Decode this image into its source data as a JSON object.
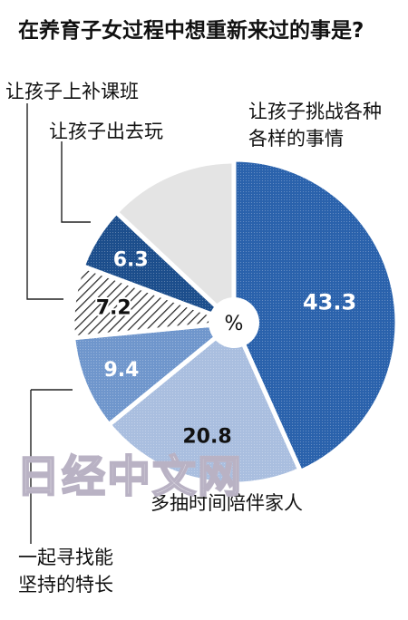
{
  "title": "在养育子女过程中想重新来过的事是?",
  "chart_data": {
    "type": "pie",
    "unit": "%",
    "slices": [
      {
        "label_lines": [
          "让孩子挑战各种",
          "各样的事情"
        ],
        "value": 43.3,
        "value_label": "43.3",
        "color": "#2a62ac"
      },
      {
        "label_lines": [
          "多抽时间陪伴家人"
        ],
        "value": 20.8,
        "value_label": "20.8",
        "color": "#a9bedf"
      },
      {
        "label_lines": [
          "一起寻找能",
          "坚持的特长"
        ],
        "value": 9.4,
        "value_label": "9.4",
        "color": "#6f96cc"
      },
      {
        "label_lines": [
          "让孩子上补课班"
        ],
        "value": 7.2,
        "value_label": "7.2",
        "color": "hatch"
      },
      {
        "label_lines": [
          "让孩子出去玩"
        ],
        "value": 6.3,
        "value_label": "6.3",
        "color": "#1c4e8c"
      },
      {
        "label_lines": [
          ""
        ],
        "value": 13.0,
        "value_label": "",
        "color": "#e4e4e4"
      }
    ]
  },
  "watermark": "日经中文网"
}
